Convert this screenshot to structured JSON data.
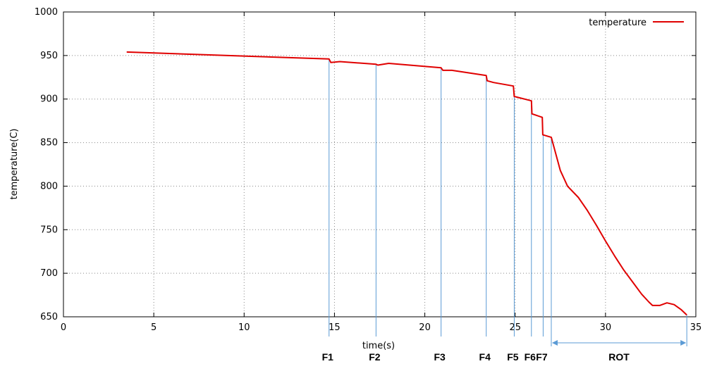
{
  "chart_data": {
    "type": "line",
    "title": "",
    "xlabel": "time(s)",
    "ylabel": "temperature(C)",
    "xlim": [
      0,
      35
    ],
    "ylim": [
      650,
      1000
    ],
    "x_ticks": [
      0,
      5,
      10,
      15,
      20,
      25,
      30,
      35
    ],
    "y_ticks": [
      650,
      700,
      750,
      800,
      850,
      900,
      950,
      1000
    ],
    "grid": true,
    "legend": "top-right",
    "series": [
      {
        "name": "temperature",
        "color": "#e00000",
        "points": [
          [
            3.5,
            954
          ],
          [
            14.7,
            946
          ],
          [
            14.8,
            942
          ],
          [
            15.3,
            943
          ],
          [
            17.3,
            940
          ],
          [
            17.4,
            939
          ],
          [
            18.0,
            941
          ],
          [
            20.9,
            936
          ],
          [
            21.0,
            933
          ],
          [
            21.5,
            933
          ],
          [
            23.4,
            927
          ],
          [
            23.45,
            921
          ],
          [
            23.8,
            919
          ],
          [
            24.9,
            915
          ],
          [
            24.95,
            903
          ],
          [
            25.9,
            898
          ],
          [
            25.93,
            883
          ],
          [
            26.5,
            879
          ],
          [
            26.53,
            859
          ],
          [
            27.0,
            856
          ],
          [
            27.5,
            818
          ],
          [
            27.9,
            800
          ],
          [
            28.5,
            787
          ],
          [
            29.0,
            772
          ],
          [
            29.5,
            755
          ],
          [
            30.0,
            737
          ],
          [
            30.5,
            720
          ],
          [
            31.0,
            704
          ],
          [
            31.5,
            690
          ],
          [
            32.0,
            676
          ],
          [
            32.4,
            667
          ],
          [
            32.6,
            663
          ],
          [
            33.0,
            663
          ],
          [
            33.4,
            666
          ],
          [
            33.8,
            664
          ],
          [
            34.2,
            658
          ],
          [
            34.5,
            652
          ]
        ]
      }
    ],
    "annotations": {
      "stands": [
        {
          "label": "F1",
          "x": 14.7
        },
        {
          "label": "F2",
          "x": 17.3
        },
        {
          "label": "F3",
          "x": 20.9
        },
        {
          "label": "F4",
          "x": 23.4
        },
        {
          "label": "F5",
          "x": 24.95
        },
        {
          "label": "F6",
          "x": 25.9
        },
        {
          "label": "F7",
          "x": 26.55
        }
      ],
      "rot": {
        "label": "ROT",
        "x_start": 27.0,
        "x_end": 34.5
      }
    },
    "annotation_color": "#5b9bd5"
  }
}
